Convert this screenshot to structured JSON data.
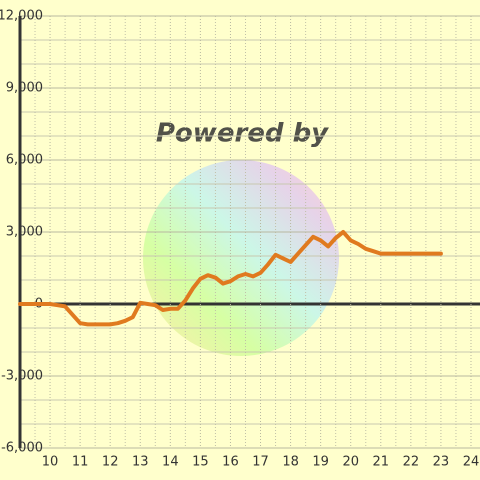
{
  "chart_data": {
    "type": "line",
    "watermark": "Powered by",
    "x": [
      9,
      9.25,
      9.5,
      9.75,
      10,
      10.25,
      10.5,
      10.75,
      11,
      11.25,
      11.5,
      11.75,
      12,
      12.25,
      12.5,
      12.75,
      13,
      13.25,
      13.5,
      13.75,
      14,
      14.25,
      14.5,
      14.75,
      15,
      15.25,
      15.5,
      15.75,
      16,
      16.25,
      16.5,
      16.75,
      17,
      17.25,
      17.5,
      17.75,
      18,
      18.25,
      18.5,
      18.75,
      19,
      19.25,
      19.5,
      19.75,
      20,
      20.25,
      20.5,
      20.75,
      21,
      21.25,
      21.5,
      21.75,
      22,
      22.25,
      22.5,
      22.75,
      23
    ],
    "series": [
      {
        "color": "#e07a1f",
        "values": [
          0,
          0,
          0,
          0,
          0,
          -50,
          -100,
          -450,
          -800,
          -850,
          -850,
          -850,
          -850,
          -800,
          -700,
          -550,
          50,
          0,
          -50,
          -250,
          -200,
          -200,
          150,
          650,
          1050,
          1200,
          1100,
          850,
          950,
          1150,
          1250,
          1150,
          1300,
          1650,
          2050,
          1900,
          1750,
          2100,
          2450,
          2800,
          2650,
          2400,
          2750,
          3000,
          2650,
          2500,
          2300,
          2200,
          2100,
          2100,
          2100,
          2100,
          2100,
          2100,
          2100,
          2100,
          2100
        ]
      }
    ],
    "xlim": [
      9,
      24.3
    ],
    "xticks": [
      10,
      11,
      12,
      13,
      14,
      15,
      16,
      17,
      18,
      19,
      20,
      21,
      22,
      23,
      24
    ],
    "xminor": [
      9.5,
      10.5,
      11.5,
      12.5,
      13.5,
      14.5,
      15.5,
      16.5,
      17.5,
      18.5,
      19.5,
      20.5,
      21.5,
      22.5,
      23.5
    ],
    "ylim": [
      -6000,
      12000
    ],
    "yticks": [
      {
        "value": -6000,
        "label": "-6,000"
      },
      {
        "value": -3000,
        "label": "-3,000"
      },
      0,
      {
        "value": 3000,
        "label": "3,000"
      },
      {
        "value": 6000,
        "label": "6,000"
      },
      {
        "value": 9000,
        "label": "9,000"
      },
      {
        "value": 12000,
        "label": "12,000"
      }
    ],
    "yminor": [
      -5000,
      -4000,
      -2000,
      -1000,
      1000,
      2000,
      4000,
      5000,
      7000,
      8000,
      10000,
      11000
    ],
    "grid": true
  }
}
